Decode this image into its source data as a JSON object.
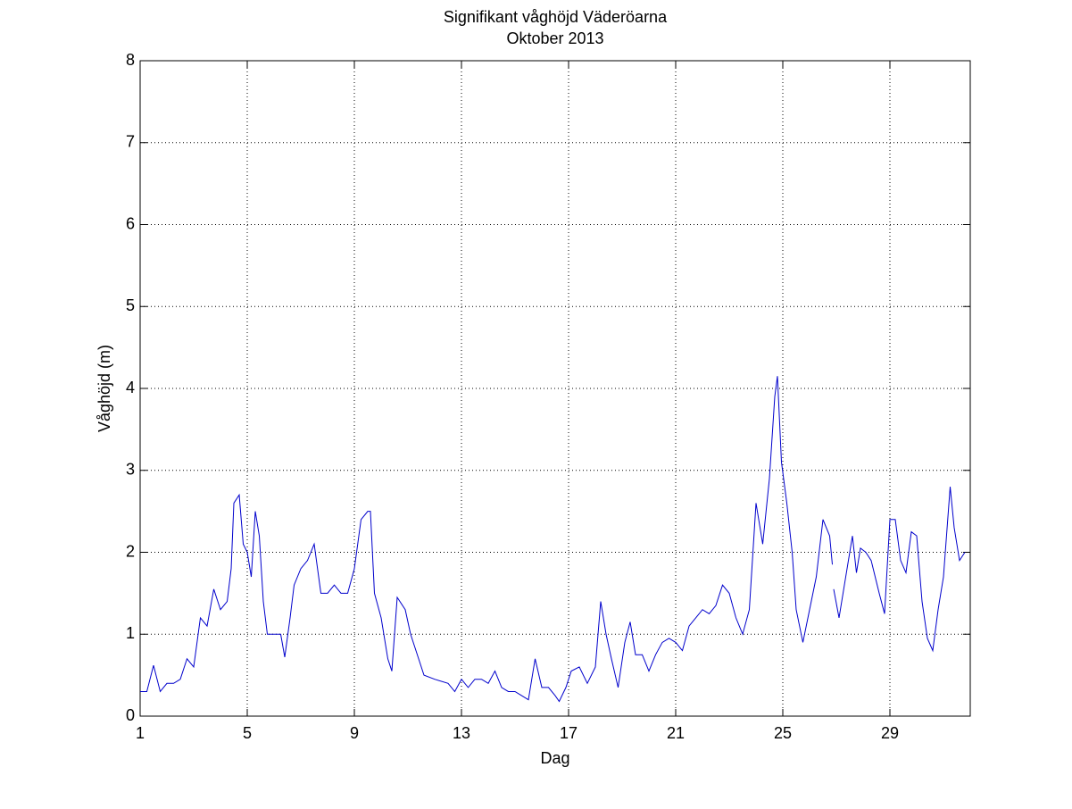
{
  "chart_data": {
    "type": "line",
    "title": "Signifikant våghöjd Väderöarna",
    "subtitle": "Oktober 2013",
    "x_label": "Dag",
    "y_label": "Våghöjd (m)",
    "xlim": [
      1,
      32
    ],
    "xticks": [
      1,
      5,
      9,
      13,
      17,
      21,
      25,
      29
    ],
    "ylim": [
      0,
      8
    ],
    "yticks": [
      0,
      1,
      2,
      3,
      4,
      5,
      6,
      7,
      8
    ],
    "grid": true,
    "series": [
      {
        "color": "#0000cc",
        "x": [
          1.0,
          1.25,
          1.5,
          1.75,
          2.0,
          2.25,
          2.5,
          2.75,
          3.0,
          3.25,
          3.5,
          3.75,
          4.0,
          4.25,
          4.4,
          4.5,
          4.7,
          4.85,
          5.0,
          5.15,
          5.3,
          5.45,
          5.6,
          5.75,
          6.0,
          6.25,
          6.4,
          6.6,
          6.75,
          7.0,
          7.25,
          7.5,
          7.75,
          8.0,
          8.25,
          8.5,
          8.75,
          9.0,
          9.25,
          9.5,
          9.6,
          9.75,
          10.0,
          10.25,
          10.4,
          10.6,
          10.9,
          11.1,
          11.4,
          11.6,
          12.0,
          12.5,
          12.75,
          13.0,
          13.25,
          13.5,
          13.75,
          14.0,
          14.25,
          14.5,
          14.75,
          15.0,
          15.25,
          15.5,
          15.75,
          16.0,
          16.25,
          16.5,
          16.65,
          16.9,
          17.1,
          17.4,
          17.7,
          18.0,
          18.2,
          18.4,
          18.6,
          18.85,
          19.1,
          19.3,
          19.5,
          19.75,
          20.0,
          20.25,
          20.5,
          20.75,
          21.0,
          21.25,
          21.5,
          21.75,
          22.0,
          22.25,
          22.5,
          22.75,
          23.0,
          23.25,
          23.5,
          23.75,
          24.0,
          24.25,
          24.5,
          24.7,
          24.8,
          24.95,
          25.15,
          25.35,
          25.5,
          25.75,
          26.0,
          26.25,
          26.5,
          26.75,
          26.85,
          26.87,
          26.9,
          27.1,
          27.3,
          27.6,
          27.75,
          27.9,
          28.1,
          28.3,
          28.6,
          28.8,
          29.0,
          29.2,
          29.4,
          29.6,
          29.8,
          30.0,
          30.2,
          30.4,
          30.6,
          30.8,
          31.0,
          31.25,
          31.4,
          31.6,
          31.8
        ],
        "values": [
          0.3,
          0.3,
          0.62,
          0.3,
          0.4,
          0.4,
          0.45,
          0.7,
          0.6,
          1.2,
          1.1,
          1.55,
          1.3,
          1.4,
          1.8,
          2.6,
          2.7,
          2.1,
          2.0,
          1.7,
          2.5,
          2.2,
          1.4,
          1.0,
          1.0,
          1.0,
          0.72,
          1.2,
          1.6,
          1.8,
          1.9,
          2.1,
          1.5,
          1.5,
          1.6,
          1.5,
          1.5,
          1.8,
          2.4,
          2.5,
          2.5,
          1.5,
          1.2,
          0.7,
          0.55,
          1.45,
          1.3,
          1.0,
          0.7,
          0.5,
          0.45,
          0.4,
          0.3,
          0.45,
          0.35,
          0.45,
          0.45,
          0.4,
          0.55,
          0.35,
          0.3,
          0.3,
          0.25,
          0.2,
          0.7,
          0.35,
          0.35,
          0.25,
          0.18,
          0.35,
          0.55,
          0.6,
          0.4,
          0.6,
          1.4,
          1.0,
          0.7,
          0.35,
          0.9,
          1.15,
          0.75,
          0.75,
          0.55,
          0.75,
          0.9,
          0.95,
          0.9,
          0.8,
          1.1,
          1.2,
          1.3,
          1.25,
          1.35,
          1.6,
          1.5,
          1.2,
          1.0,
          1.3,
          2.6,
          2.1,
          2.9,
          3.9,
          4.15,
          3.1,
          2.6,
          2.0,
          1.3,
          0.9,
          1.3,
          1.7,
          2.4,
          2.2,
          1.85,
          null,
          1.55,
          1.2,
          1.6,
          2.2,
          1.75,
          2.05,
          2.0,
          1.9,
          1.5,
          1.25,
          2.4,
          2.4,
          1.9,
          1.75,
          2.25,
          2.2,
          1.4,
          0.95,
          0.8,
          1.3,
          1.7,
          2.8,
          2.3,
          1.9,
          2.0
        ]
      }
    ]
  }
}
